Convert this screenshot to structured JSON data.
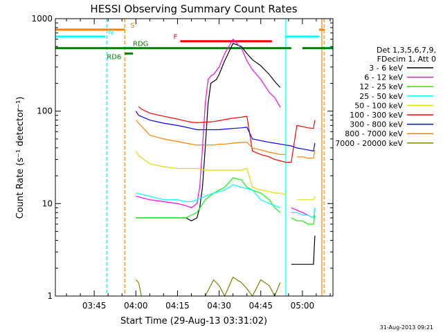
{
  "chart_data": {
    "type": "line",
    "title": "HESSI Observing Summary Count Rates",
    "xlabel": "Start Time (29-Aug-13 03:31:02)",
    "ylabel": "Count Rate (s⁻¹ detector⁻¹)",
    "x_start_minutes": 211.0,
    "xlim": [
      211.0,
      311.0
    ],
    "ylim": [
      1,
      1000
    ],
    "y_scale": "log",
    "x_ticks": [
      "03:45",
      "04:00",
      "04:15",
      "04:30",
      "04:45",
      "05:00"
    ],
    "y_ticks": [
      "1",
      "10",
      "100",
      "1000"
    ],
    "legend_title": [
      "Det 1,3,5,6,7,9,",
      "FDecim 1, Att 0"
    ],
    "legend_position": "right",
    "footer_date": "31-Aug-2013 09:21",
    "grid": false,
    "series": [
      {
        "name": "3 - 6 keV",
        "color": "#000000",
        "x": [
          236.5,
          240,
          245,
          250,
          255,
          258,
          260,
          262,
          263,
          264,
          265,
          266,
          267,
          268,
          269,
          270,
          272,
          275,
          278,
          280,
          282,
          285,
          288,
          290,
          292,
          294,
          296,
          298,
          300,
          302,
          304,
          304.5
        ],
        "y": [
          null,
          7,
          7,
          7,
          7,
          7,
          6.5,
          7,
          9,
          15,
          40,
          120,
          200,
          210,
          220,
          250,
          350,
          540,
          500,
          420,
          360,
          310,
          250,
          210,
          180,
          null,
          2.2,
          2.2,
          2.2,
          2.2,
          2.2,
          4.5
        ]
      },
      {
        "name": "6 - 12 keV",
        "color": "#ff00ff",
        "x": [
          236.5,
          240,
          245,
          250,
          255,
          258,
          260,
          262,
          263,
          264,
          265,
          266,
          267,
          268,
          270,
          272,
          275,
          278,
          280,
          282,
          285,
          288,
          290,
          292,
          294,
          296,
          298,
          300,
          302,
          304,
          304.5
        ],
        "y": [
          null,
          12,
          11,
          10.5,
          10,
          9.5,
          9,
          10,
          15,
          40,
          120,
          220,
          240,
          250,
          300,
          420,
          600,
          480,
          350,
          280,
          220,
          160,
          140,
          110,
          null,
          9,
          8.5,
          8,
          7.5,
          7,
          9
        ]
      },
      {
        "name": "12 - 25 keV",
        "color": "#00ff00",
        "x": [
          236.5,
          240,
          245,
          250,
          255,
          258,
          260,
          262,
          265,
          268,
          270,
          272,
          275,
          278,
          280,
          282,
          285,
          288,
          290,
          292,
          294,
          296,
          298,
          300,
          302,
          304,
          304.5
        ],
        "y": [
          null,
          7,
          7,
          7,
          7,
          7,
          7.5,
          8,
          11,
          13,
          14,
          15,
          19,
          18,
          15,
          14,
          13,
          11,
          9,
          8,
          null,
          7,
          6.5,
          6.5,
          6,
          6,
          7.5
        ]
      },
      {
        "name": "25 - 50 keV",
        "color": "#00ffff",
        "x": [
          236.5,
          240,
          245,
          250,
          255,
          258,
          260,
          262,
          265,
          268,
          270,
          272,
          275,
          278,
          280,
          282,
          285,
          288,
          290,
          292,
          294,
          296,
          298,
          300,
          302,
          304,
          304.5
        ],
        "y": [
          null,
          13,
          12,
          11,
          11,
          10.5,
          10.5,
          11,
          12,
          13,
          13.5,
          14,
          16,
          15,
          14.5,
          14,
          11,
          10,
          9.5,
          9,
          null,
          8,
          8,
          7.5,
          7.5,
          7,
          9
        ]
      },
      {
        "name": "50 - 100 keV",
        "color": "#dddd00",
        "x": [
          236.5,
          240,
          241,
          245,
          250,
          255,
          258,
          260,
          262,
          265,
          268,
          270,
          272,
          275,
          278,
          280,
          282,
          285,
          288,
          290,
          292,
          294,
          296,
          298,
          300,
          302,
          304,
          304.5
        ],
        "y": [
          null,
          37,
          33,
          27,
          25,
          24,
          24,
          24,
          24,
          23,
          23,
          23,
          23,
          23,
          23,
          24,
          15,
          14,
          13.5,
          13,
          13,
          12.5,
          null,
          11,
          11,
          11,
          11,
          12
        ]
      },
      {
        "name": "100 - 300 keV",
        "color": "#ff0000",
        "x": [
          241,
          242,
          245,
          250,
          255,
          258,
          260,
          262,
          265,
          268,
          270,
          272,
          275,
          278,
          280,
          282,
          285,
          288,
          290,
          292,
          294,
          296,
          298,
          300,
          302,
          304,
          304.5
        ],
        "y": [
          112,
          105,
          95,
          88,
          82,
          78,
          76,
          75,
          76,
          77,
          79,
          81,
          84,
          86,
          88,
          37,
          34,
          32,
          30,
          29,
          28,
          28,
          70,
          68,
          66,
          65,
          80
        ]
      },
      {
        "name": "300 - 800 keV",
        "color": "#0000ff",
        "x": [
          236.5,
          240,
          241,
          245,
          250,
          255,
          258,
          260,
          262,
          265,
          268,
          270,
          272,
          275,
          278,
          280,
          282,
          285,
          288,
          290,
          292,
          294,
          296,
          298,
          300,
          302,
          304,
          304.5
        ],
        "y": [
          null,
          100,
          90,
          80,
          74,
          70,
          67,
          65,
          63,
          63,
          63,
          63,
          64,
          65,
          66,
          67,
          50,
          48,
          46,
          45,
          44,
          43,
          42,
          40,
          39,
          38,
          37,
          45
        ]
      },
      {
        "name": "800 - 7000 keV",
        "color": "#ff8000",
        "x": [
          236.5,
          240,
          245,
          250,
          255,
          258,
          260,
          262,
          265,
          268,
          270,
          272,
          275,
          278,
          280,
          282,
          285,
          288,
          290,
          292,
          294,
          296,
          298,
          300,
          302,
          304,
          304.5
        ],
        "y": [
          null,
          80,
          55,
          50,
          47,
          45,
          44,
          43,
          43,
          43,
          44,
          44,
          45,
          46,
          46,
          40,
          38,
          36,
          35,
          34,
          34,
          null,
          32,
          32,
          31,
          31,
          38
        ]
      },
      {
        "name": "7000 - 20000 keV",
        "color": "#808000",
        "x": [
          236.5,
          240,
          241,
          242,
          245,
          250,
          255,
          258,
          260,
          262,
          265,
          268,
          270,
          272,
          275,
          278,
          280,
          282,
          285,
          288,
          290,
          292,
          294,
          296,
          298,
          300,
          302,
          304
        ],
        "y": [
          null,
          1.5,
          1.4,
          1,
          null,
          null,
          null,
          null,
          null,
          null,
          1,
          1.5,
          1.3,
          1,
          1.6,
          1.4,
          1.2,
          1,
          1.5,
          1.3,
          1,
          1.4,
          null,
          null,
          null,
          1,
          null,
          null
        ]
      }
    ],
    "flag_bars": [
      {
        "label": "S",
        "color": "#ff8000",
        "segments": [
          [
            211,
            236
          ],
          [
            306,
            308
          ]
        ],
        "level": 760
      },
      {
        "label": "N",
        "color": "#00ffff",
        "segments": [
          [
            211,
            229
          ],
          [
            294,
            306
          ]
        ],
        "level": 640
      },
      {
        "label": "F",
        "color": "#ff0000",
        "segments": [
          [
            256,
            289
          ]
        ],
        "level": 570
      },
      {
        "label": "RDG",
        "color": "#008000",
        "segments": [
          [
            211,
            296
          ],
          [
            300,
            311
          ]
        ],
        "level": 480
      },
      {
        "label": "RD6",
        "color": "#008000",
        "segments": [
          [
            236,
            239
          ]
        ],
        "level": 420
      }
    ],
    "vertical_lines": [
      {
        "x": 229.5,
        "color": "#00ffff",
        "style": "dashed"
      },
      {
        "x": 236.0,
        "color": "#ff8000",
        "style": "dashed"
      },
      {
        "x": 294.0,
        "color": "#00ffff",
        "style": "solid"
      },
      {
        "x": 307.0,
        "color": "#ff8000",
        "style": "solid"
      },
      {
        "x": 307.8,
        "color": "#ff8000",
        "style": "dashed"
      }
    ]
  }
}
